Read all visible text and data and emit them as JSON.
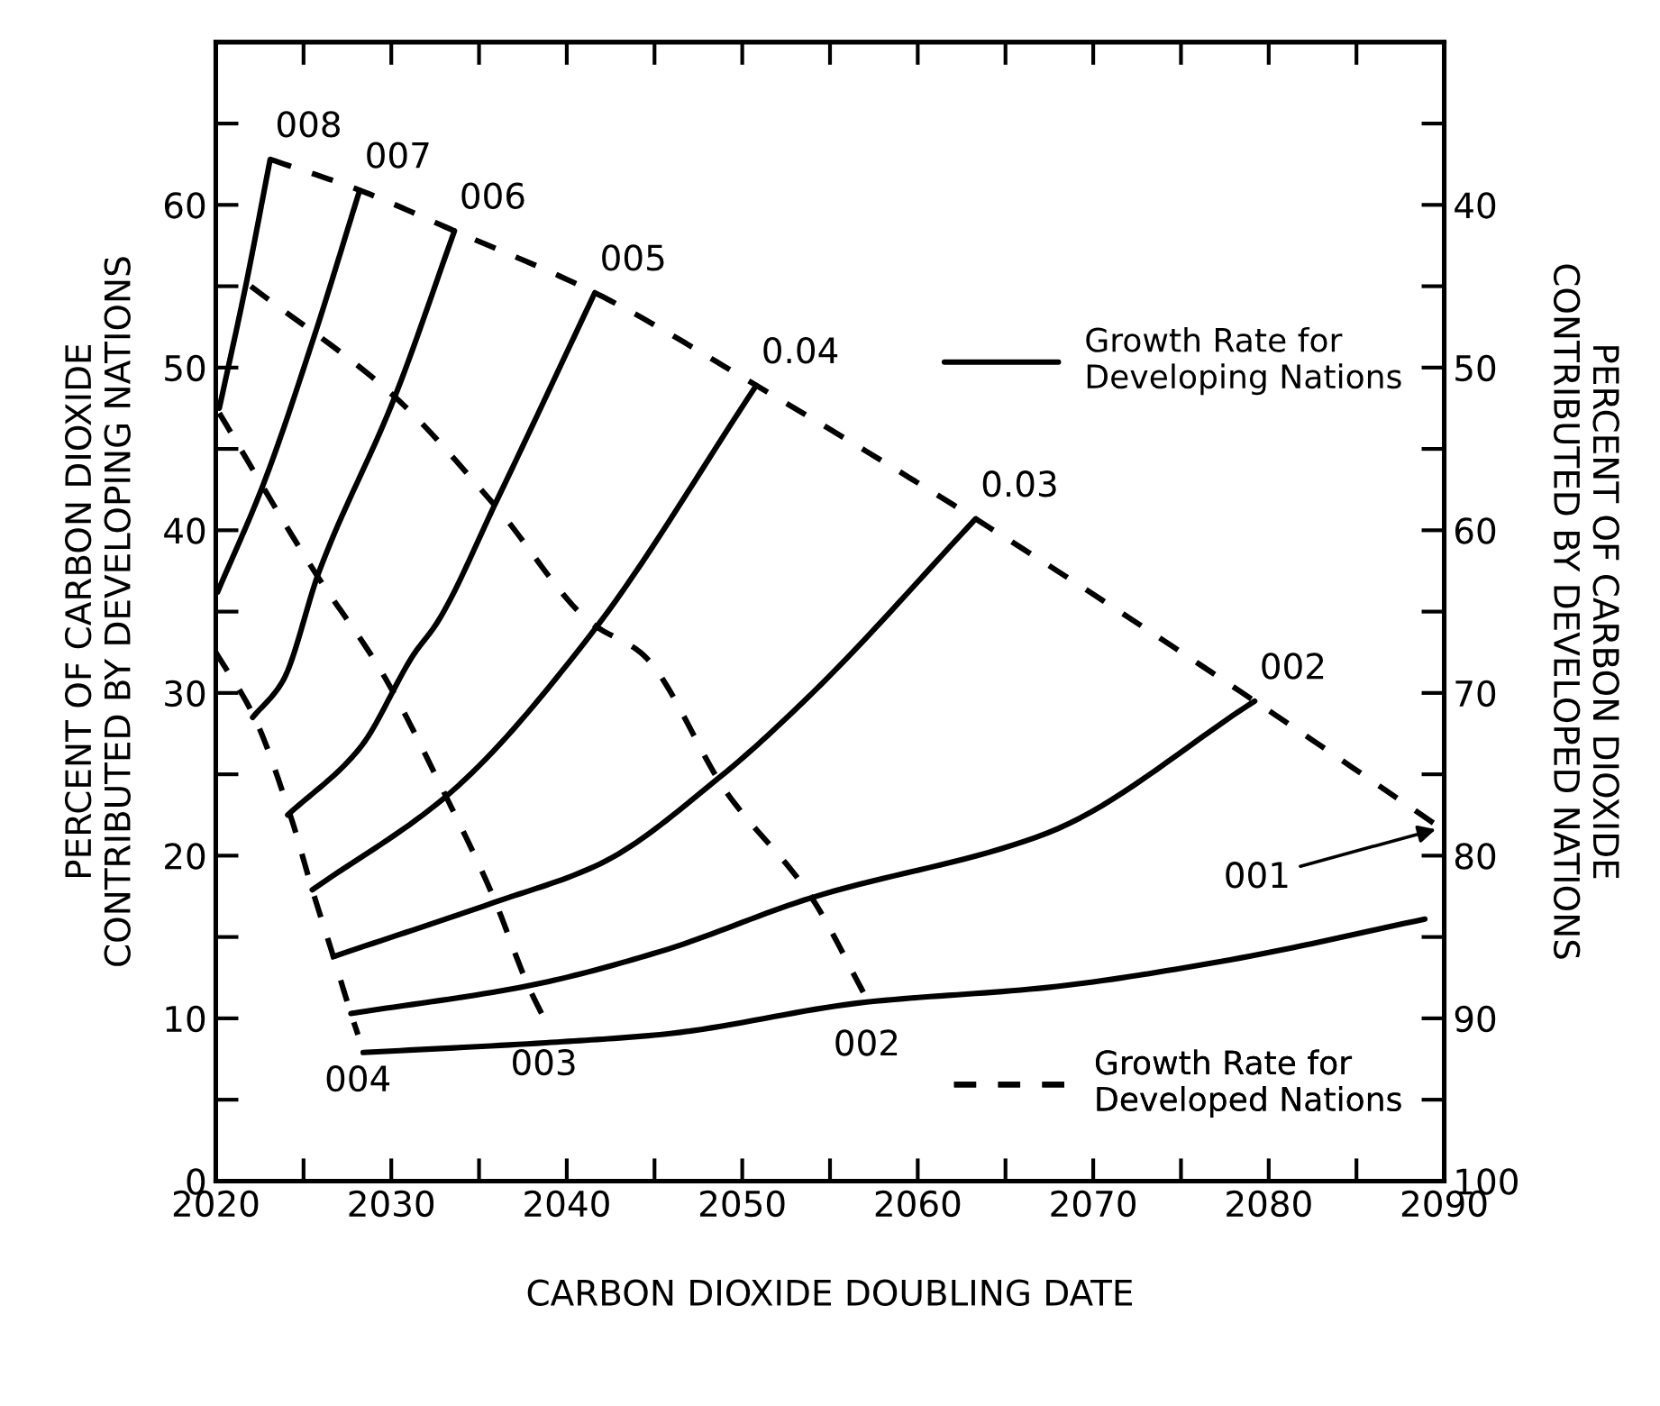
{
  "chart_data": {
    "type": "line",
    "xlabel": "CARBON DIOXIDE DOUBLING DATE",
    "ylabel": "PERCENT OF CARBON DIOXIDE\nCONTRIBUTED BY DEVELOPING NATIONS",
    "y2label": "PERCENT OF CARBON DIOXIDE\nCONTRIBUTED BY DEVELOPED NATIONS",
    "xlim": [
      2020,
      2090
    ],
    "xticks": [
      2020,
      {
        "value": 2025,
        "label": null
      },
      2030,
      {
        "value": 2035,
        "label": null
      },
      2040,
      {
        "value": 2045,
        "label": null
      },
      2050,
      {
        "value": 2055,
        "label": null
      },
      2060,
      {
        "value": 2065,
        "label": null
      },
      2070,
      {
        "value": 2075,
        "label": null
      },
      2080,
      {
        "value": 2085,
        "label": null
      },
      2090
    ],
    "ylim": [
      0,
      70
    ],
    "yticks": [
      0,
      {
        "value": 5,
        "label": null
      },
      10,
      {
        "value": 15,
        "label": null
      },
      20,
      {
        "value": 25,
        "label": null
      },
      30,
      {
        "value": 35,
        "label": null
      },
      40,
      {
        "value": 45,
        "label": null
      },
      50,
      {
        "value": 55,
        "label": null
      },
      60,
      {
        "value": 65,
        "label": null
      }
    ],
    "y2lim": [
      100,
      30
    ],
    "y2ticks": [
      100,
      {
        "value": 95,
        "label": null
      },
      90,
      {
        "value": 85,
        "label": null
      },
      80,
      {
        "value": 75,
        "label": null
      },
      70,
      {
        "value": 65,
        "label": null
      },
      60,
      {
        "value": 55,
        "label": null
      },
      50,
      {
        "value": 45,
        "label": null
      },
      40,
      {
        "value": 35,
        "label": null
      }
    ],
    "grid": false,
    "legend": "right",
    "marker": "none",
    "series": [
      {
        "name": "Growth Rate for\nDeveloping Nations",
        "color": "#000000",
        "line_style": "solid",
        "x": [
          2020.2,
          2021.7,
          2023.1
        ],
        "values": [
          47.5,
          55.0,
          62.8
        ]
      },
      {
        "color": "#000000",
        "line_style": "solid",
        "x": [
          2020.1,
          2022.7,
          2025.6,
          2028.2
        ],
        "values": [
          36.2,
          42.8,
          51.9,
          60.9
        ]
      },
      {
        "color": "#000000",
        "line_style": "solid",
        "x": [
          2022.1,
          2023.8,
          2025.9,
          2030.2,
          2033.6
        ],
        "values": [
          28.5,
          30.7,
          37.5,
          48.2,
          58.4
        ]
      },
      {
        "color": "#000000",
        "line_style": "solid",
        "x": [
          2024.1,
          2028.2,
          2031.3,
          2032.6,
          2036.0,
          2041.6
        ],
        "values": [
          22.5,
          26.6,
          32.4,
          34.3,
          41.8,
          54.6
        ]
      },
      {
        "color": "#000000",
        "line_style": "solid",
        "x": [
          2025.5,
          2033.4,
          2041.3,
          2050.8
        ],
        "values": [
          17.9,
          23.9,
          33.5,
          48.9
        ]
      },
      {
        "color": "#000000",
        "line_style": "solid",
        "x": [
          2026.7,
          2035.8,
          2041.9,
          2048.8,
          2054.0,
          2063.3
        ],
        "values": [
          13.8,
          17.1,
          19.5,
          24.9,
          30.0,
          40.7
        ]
      },
      {
        "color": "#000000",
        "line_style": "solid",
        "x": [
          2027.7,
          2037.8,
          2045.3,
          2053.9,
          2067.4,
          2079.2
        ],
        "values": [
          10.3,
          12.0,
          14.1,
          17.4,
          21.4,
          29.5
        ]
      },
      {
        "color": "#000000",
        "line_style": "solid",
        "x": [
          2028.4,
          2038.8,
          2045.3,
          2057.1,
          2067.4,
          2077.8,
          2088.9
        ],
        "values": [
          7.9,
          8.5,
          9.0,
          11.0,
          11.9,
          13.6,
          16.1
        ]
      },
      {
        "name": "Growth Rate for\nDeveloped Nations",
        "color": "#000000",
        "line_style": "dashed",
        "x": [
          2023.1,
          2028.2,
          2033.6,
          2041.6,
          2050.8,
          2063.3,
          2079.2,
          2089.8
        ],
        "values": [
          62.8,
          60.9,
          58.4,
          54.6,
          48.9,
          40.7,
          29.5,
          21.7
        ]
      },
      {
        "color": "#000000",
        "line_style": "dashed",
        "x": [
          2022.0,
          2030.2,
          2036.0,
          2041.4,
          2044.3,
          2049.1,
          2053.9,
          2057.1
        ],
        "values": [
          55.0,
          48.2,
          41.4,
          34.3,
          32.4,
          23.9,
          17.5,
          11.2
        ]
      },
      {
        "color": "#000000",
        "line_style": "dashed",
        "x": [
          2020.2,
          2025.6,
          2029.5,
          2033.0,
          2035.8,
          2037.8,
          2038.7
        ],
        "values": [
          47.2,
          37.5,
          31.2,
          23.9,
          17.5,
          12.0,
          10.0
        ]
      },
      {
        "color": "#000000",
        "line_style": "dashed",
        "x": [
          2020.0,
          2022.2,
          2024.3,
          2025.5,
          2026.7,
          2027.7,
          2028.1
        ],
        "values": [
          32.5,
          28.5,
          22.3,
          17.9,
          13.8,
          10.3,
          9.0
        ]
      }
    ],
    "annotations": [
      {
        "text": "008",
        "x": 2023.1,
        "y": 62.8
      },
      {
        "text": "007",
        "x": 2028.2,
        "y": 60.9
      },
      {
        "text": "006",
        "x": 2033.6,
        "y": 58.4
      },
      {
        "text": "005",
        "x": 2041.6,
        "y": 54.6
      },
      {
        "text": "0.04",
        "x": 2050.8,
        "y": 48.9
      },
      {
        "text": "0.03",
        "x": 2063.3,
        "y": 40.7
      },
      {
        "text": "002",
        "x": 2079.2,
        "y": 29.5
      },
      {
        "text": "001",
        "x": 2089.8,
        "y": 21.7
      },
      {
        "text": "004",
        "x": 2028.1,
        "y": 9.0
      },
      {
        "text": "003",
        "x": 2038.7,
        "y": 10.0
      },
      {
        "text": "002",
        "x": 2057.1,
        "y": 11.2
      }
    ]
  }
}
